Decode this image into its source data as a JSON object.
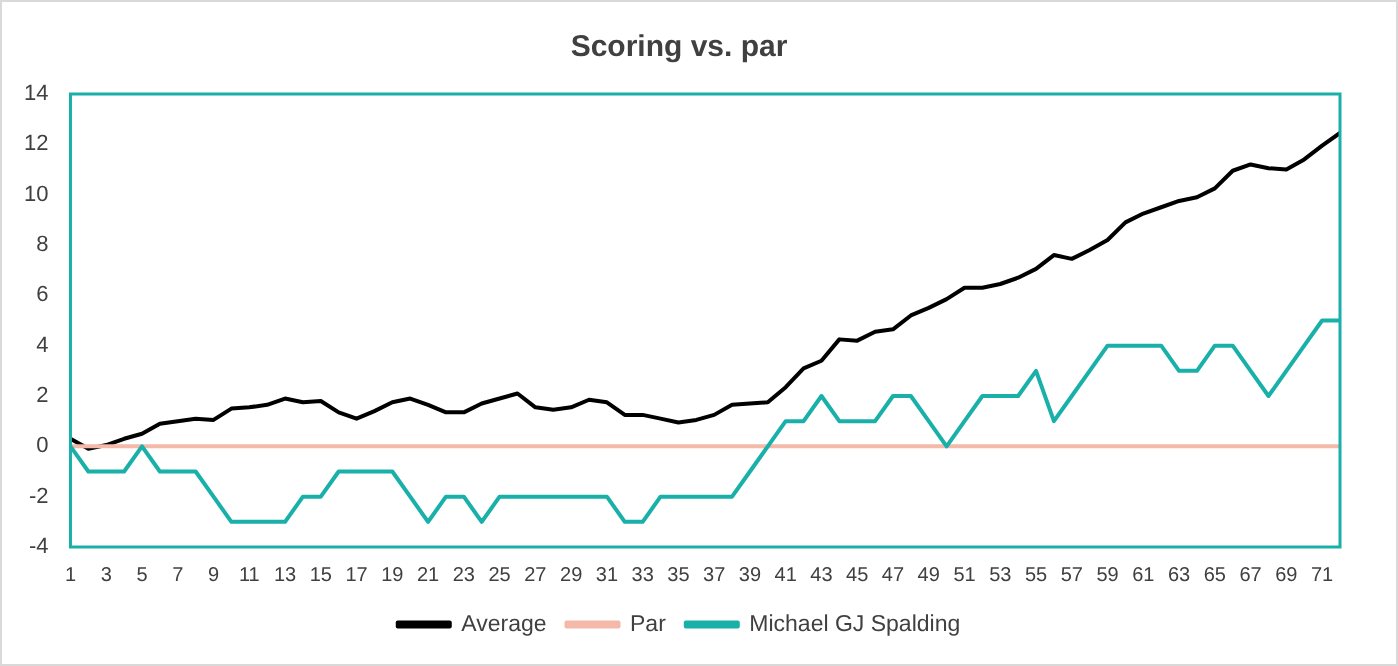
{
  "chart_data": {
    "type": "line",
    "title": "Scoring vs. par",
    "x": [
      1,
      2,
      3,
      4,
      5,
      6,
      7,
      8,
      9,
      10,
      11,
      12,
      13,
      14,
      15,
      16,
      17,
      18,
      19,
      20,
      21,
      22,
      23,
      24,
      25,
      26,
      27,
      28,
      29,
      30,
      31,
      32,
      33,
      34,
      35,
      36,
      37,
      38,
      39,
      40,
      41,
      42,
      43,
      44,
      45,
      46,
      47,
      48,
      49,
      50,
      51,
      52,
      53,
      54,
      55,
      56,
      57,
      58,
      59,
      60,
      61,
      62,
      63,
      64,
      65,
      66,
      67,
      68,
      69,
      70,
      71,
      72
    ],
    "series": [
      {
        "name": "Average",
        "color": "#000000",
        "values": [
          0.3,
          -0.1,
          0.05,
          0.3,
          0.5,
          0.9,
          1.0,
          1.1,
          1.05,
          1.5,
          1.55,
          1.65,
          1.9,
          1.75,
          1.8,
          1.35,
          1.1,
          1.4,
          1.75,
          1.9,
          1.65,
          1.35,
          1.35,
          1.7,
          1.9,
          2.1,
          1.55,
          1.45,
          1.55,
          1.85,
          1.75,
          1.25,
          1.25,
          1.1,
          0.95,
          1.05,
          1.25,
          1.65,
          1.7,
          1.75,
          2.35,
          3.1,
          3.4,
          4.25,
          4.2,
          4.55,
          4.65,
          5.2,
          5.5,
          5.85,
          6.3,
          6.3,
          6.45,
          6.7,
          7.05,
          7.6,
          7.45,
          7.8,
          8.2,
          8.9,
          9.25,
          9.5,
          9.75,
          9.9,
          10.25,
          10.95,
          11.2,
          11.05,
          11.0,
          11.4,
          11.95,
          12.45
        ]
      },
      {
        "name": "Par",
        "color": "#f4b9a8",
        "values": [
          0,
          0,
          0,
          0,
          0,
          0,
          0,
          0,
          0,
          0,
          0,
          0,
          0,
          0,
          0,
          0,
          0,
          0,
          0,
          0,
          0,
          0,
          0,
          0,
          0,
          0,
          0,
          0,
          0,
          0,
          0,
          0,
          0,
          0,
          0,
          0,
          0,
          0,
          0,
          0,
          0,
          0,
          0,
          0,
          0,
          0,
          0,
          0,
          0,
          0,
          0,
          0,
          0,
          0,
          0,
          0,
          0,
          0,
          0,
          0,
          0,
          0,
          0,
          0,
          0,
          0,
          0,
          0,
          0,
          0,
          0,
          0
        ]
      },
      {
        "name": "Michael GJ Spalding",
        "color": "#1ab0aa",
        "values": [
          0,
          -1,
          -1,
          -1,
          0,
          -1,
          -1,
          -1,
          -2,
          -3,
          -3,
          -3,
          -3,
          -2,
          -2,
          -1,
          -1,
          -1,
          -1,
          -2,
          -3,
          -2,
          -2,
          -3,
          -2,
          -2,
          -2,
          -2,
          -2,
          -2,
          -2,
          -3,
          -3,
          -2,
          -2,
          -2,
          -2,
          -2,
          -1,
          0,
          1,
          1,
          2,
          1,
          1,
          1,
          2,
          2,
          1,
          0,
          1,
          2,
          2,
          2,
          3,
          1,
          2,
          3,
          4,
          4,
          4,
          4,
          3,
          3,
          4,
          4,
          3,
          2,
          3,
          4,
          5,
          5
        ]
      }
    ],
    "xlim": [
      1,
      72
    ],
    "xticks": [
      1,
      3,
      5,
      7,
      9,
      11,
      13,
      15,
      17,
      19,
      21,
      23,
      25,
      27,
      29,
      31,
      33,
      35,
      37,
      39,
      41,
      43,
      45,
      47,
      49,
      51,
      53,
      55,
      57,
      59,
      61,
      63,
      65,
      67,
      69,
      71
    ],
    "ylim": [
      -4,
      14
    ],
    "yticks": [
      -4,
      -2,
      0,
      2,
      4,
      6,
      8,
      10,
      12,
      14
    ],
    "grid": false,
    "legend": "bottom",
    "marker": "none",
    "line_style": "solid"
  }
}
